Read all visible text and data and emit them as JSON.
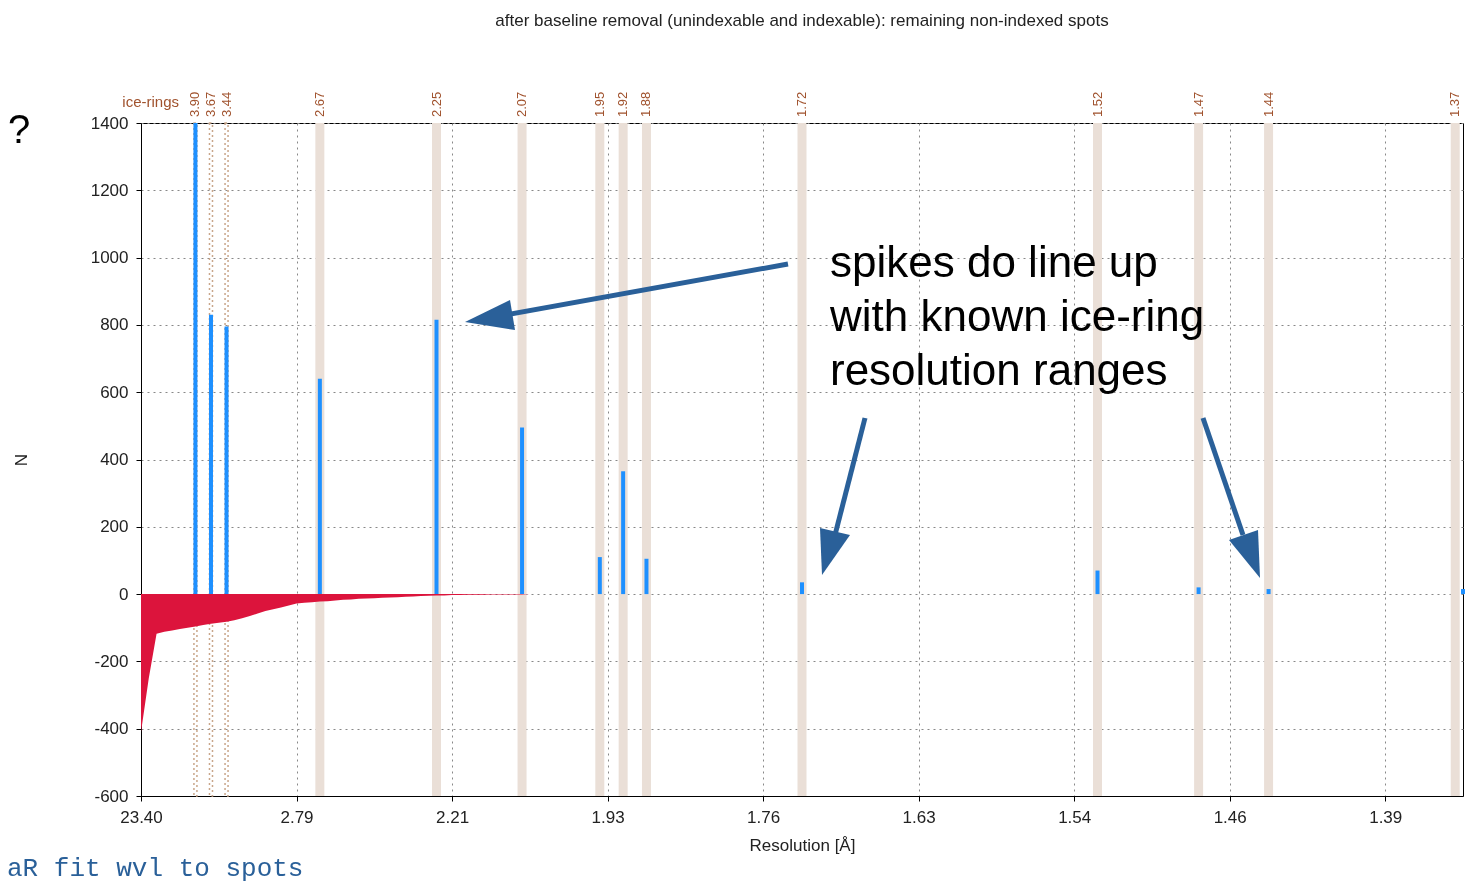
{
  "chart_data": {
    "type": "area",
    "title": "after baseline removal (unindexable and indexable): remaining non-indexed spots",
    "xlabel": "Resolution [Å]",
    "ylabel": "N",
    "categories": [
      "23.40",
      null,
      null,
      null,
      null,
      null,
      null,
      null,
      null,
      null,
      null,
      null,
      null,
      null,
      null,
      null,
      null,
      null,
      null,
      null,
      "2.79",
      null,
      null,
      null,
      null,
      null,
      null,
      null,
      null,
      null,
      null,
      null,
      null,
      null,
      null,
      null,
      null,
      null,
      null,
      null,
      "2.21",
      null,
      null,
      null,
      null,
      null,
      null,
      null,
      null,
      null,
      null,
      null,
      null,
      null,
      null,
      null,
      null,
      null,
      null,
      null,
      "1.93",
      null,
      null,
      null,
      null,
      null,
      null,
      null,
      null,
      null,
      null,
      null,
      null,
      null,
      null,
      null,
      null,
      null,
      null,
      null,
      "1.76",
      null,
      null,
      null,
      null,
      null,
      null,
      null,
      null,
      null,
      null,
      null,
      null,
      null,
      null,
      null,
      null,
      null,
      null,
      null,
      "1.63",
      null,
      null,
      null,
      null,
      null,
      null,
      null,
      null,
      null,
      null,
      null,
      null,
      null,
      null,
      null,
      null,
      null,
      null,
      null,
      "1.54",
      null,
      null,
      null,
      null,
      null,
      null,
      null,
      null,
      null,
      null,
      null,
      null,
      null,
      null,
      null,
      null,
      null,
      null,
      null,
      "1.46",
      null,
      null,
      null,
      null,
      null,
      null,
      null,
      null,
      null,
      null,
      null,
      null,
      null,
      null,
      null,
      null,
      null,
      null,
      null,
      "1.39",
      null,
      null,
      null,
      null,
      null,
      null,
      null,
      null,
      null,
      null
    ],
    "ylim": [
      -600,
      1400
    ],
    "yticks": [
      -600,
      -400,
      -200,
      0,
      200,
      400,
      600,
      800,
      1000,
      1200,
      1400
    ],
    "grid": true,
    "series": [
      {
        "type": "bar",
        "color": "#c9a68a",
        "line_style": "dotted",
        "base": [
          null,
          null,
          null,
          null,
          null,
          null,
          null,
          -600,
          null,
          -600,
          null,
          -600,
          null,
          null,
          null,
          null,
          null,
          null,
          null,
          null,
          null,
          null,
          null,
          null,
          null,
          null,
          null,
          null,
          null,
          null,
          null,
          null,
          null,
          null,
          null,
          null,
          null,
          null,
          null,
          null,
          null,
          null,
          null,
          null,
          null,
          null,
          null,
          null,
          null,
          null,
          null,
          null,
          null,
          null,
          null,
          null,
          null,
          null,
          null,
          null,
          null,
          null,
          null,
          null,
          null,
          null,
          null,
          null,
          null,
          null,
          null,
          null,
          null,
          null,
          null,
          null,
          null,
          null,
          null,
          null,
          null,
          null,
          null,
          null,
          null,
          null,
          null,
          null,
          null,
          null,
          null,
          null,
          null,
          null,
          null,
          null,
          null,
          null,
          null,
          null,
          null,
          null,
          null,
          null,
          null,
          null,
          null,
          null,
          null,
          null,
          null,
          null,
          null,
          null,
          null,
          null,
          null,
          null,
          null,
          null,
          null,
          null,
          null,
          null,
          null,
          null,
          null,
          null,
          null,
          null,
          null,
          null,
          null,
          null,
          null,
          null,
          null,
          null,
          null,
          null,
          null,
          null,
          null,
          null,
          null,
          null,
          null,
          null,
          null,
          null,
          null,
          null,
          null,
          null,
          null,
          null,
          null,
          null,
          null,
          null,
          null,
          null,
          null,
          null,
          null,
          null,
          null,
          null,
          null,
          null,
          null
        ],
        "values": [
          null,
          null,
          null,
          null,
          null,
          null,
          null,
          2000,
          null,
          2000,
          null,
          2000,
          null,
          null,
          null,
          null,
          null,
          null,
          null,
          null,
          null,
          null,
          null,
          null,
          null,
          null,
          null,
          null,
          null,
          null,
          null,
          null,
          null,
          null,
          null,
          null,
          null,
          null,
          null,
          null,
          null,
          null,
          null,
          null,
          null,
          null,
          null,
          null,
          null,
          null,
          null,
          null,
          null,
          null,
          null,
          null,
          null,
          null,
          null,
          null,
          null,
          null,
          null,
          null,
          null,
          null,
          null,
          null,
          null,
          null,
          null,
          null,
          null,
          null,
          null,
          null,
          null,
          null,
          null,
          null,
          null,
          null,
          null,
          null,
          null,
          null,
          null,
          null,
          null,
          null,
          null,
          null,
          null,
          null,
          null,
          null,
          null,
          null,
          null,
          null,
          null,
          null,
          null,
          null,
          null,
          null,
          null,
          null,
          null,
          null,
          null,
          null,
          null,
          null,
          null,
          null,
          null,
          null,
          null,
          null,
          null,
          null,
          null,
          null,
          null,
          null,
          null,
          null,
          null,
          null,
          null,
          null,
          null,
          null,
          null,
          null,
          null,
          null,
          null,
          null,
          null,
          null,
          null,
          null,
          null,
          null,
          null,
          null,
          null,
          null,
          null,
          null,
          null,
          null,
          null,
          null,
          null,
          null,
          null,
          null,
          null,
          null,
          null,
          null,
          null,
          null,
          null,
          null,
          null,
          null,
          null
        ]
      },
      {
        "type": "bar",
        "color": "#eadfd7",
        "base": [
          null,
          null,
          null,
          null,
          null,
          null,
          null,
          null,
          null,
          null,
          null,
          null,
          null,
          null,
          null,
          null,
          null,
          null,
          null,
          null,
          null,
          null,
          null,
          -600,
          null,
          null,
          null,
          null,
          null,
          null,
          null,
          null,
          null,
          null,
          null,
          null,
          null,
          null,
          -600,
          null,
          null,
          null,
          null,
          null,
          null,
          null,
          null,
          null,
          null,
          -600,
          null,
          null,
          null,
          null,
          null,
          null,
          null,
          null,
          null,
          -600,
          null,
          null,
          -600,
          null,
          null,
          -600,
          null,
          null,
          null,
          null,
          null,
          null,
          null,
          null,
          null,
          null,
          null,
          null,
          null,
          null,
          null,
          null,
          null,
          null,
          null,
          -600,
          null,
          null,
          null,
          null,
          null,
          null,
          null,
          null,
          null,
          null,
          null,
          null,
          null,
          null,
          null,
          null,
          null,
          null,
          null,
          null,
          null,
          null,
          null,
          null,
          null,
          null,
          null,
          null,
          null,
          null,
          null,
          null,
          null,
          null,
          null,
          null,
          null,
          -600,
          null,
          null,
          null,
          null,
          null,
          null,
          null,
          null,
          null,
          null,
          null,
          null,
          -600,
          null,
          null,
          null,
          null,
          null,
          null,
          null,
          null,
          -600,
          null,
          null,
          null,
          null,
          null,
          null,
          null,
          null,
          null,
          null,
          null,
          null,
          null,
          null,
          null,
          null,
          null,
          null,
          null,
          null,
          null,
          null,
          null,
          -600,
          null
        ],
        "values": [
          null,
          null,
          null,
          null,
          null,
          null,
          null,
          null,
          null,
          null,
          null,
          null,
          null,
          null,
          null,
          null,
          null,
          null,
          null,
          null,
          null,
          null,
          null,
          2000,
          null,
          null,
          null,
          null,
          null,
          null,
          null,
          null,
          null,
          null,
          null,
          null,
          null,
          null,
          2000,
          null,
          null,
          null,
          null,
          null,
          null,
          null,
          null,
          null,
          null,
          2000,
          null,
          null,
          null,
          null,
          null,
          null,
          null,
          null,
          null,
          2000,
          null,
          null,
          2000,
          null,
          null,
          2000,
          null,
          null,
          null,
          null,
          null,
          null,
          null,
          null,
          null,
          null,
          null,
          null,
          null,
          null,
          null,
          null,
          null,
          null,
          null,
          2000,
          null,
          null,
          null,
          null,
          null,
          null,
          null,
          null,
          null,
          null,
          null,
          null,
          null,
          null,
          null,
          null,
          null,
          null,
          null,
          null,
          null,
          null,
          null,
          null,
          null,
          null,
          null,
          null,
          null,
          null,
          null,
          null,
          null,
          null,
          null,
          null,
          null,
          2000,
          null,
          null,
          null,
          null,
          null,
          null,
          null,
          null,
          null,
          null,
          null,
          null,
          2000,
          null,
          null,
          null,
          null,
          null,
          null,
          null,
          null,
          2000,
          null,
          null,
          null,
          null,
          null,
          null,
          null,
          null,
          null,
          null,
          null,
          null,
          null,
          null,
          null,
          null,
          null,
          null,
          null,
          null,
          null,
          null,
          null,
          2000,
          null
        ]
      },
      {
        "type": "bar",
        "color": "#1e90ff",
        "values": [
          null,
          null,
          null,
          null,
          null,
          null,
          null,
          1400,
          null,
          830,
          null,
          795,
          null,
          null,
          null,
          null,
          null,
          null,
          null,
          null,
          null,
          null,
          null,
          640,
          null,
          null,
          null,
          null,
          null,
          null,
          null,
          null,
          null,
          null,
          null,
          null,
          null,
          null,
          815,
          null,
          null,
          null,
          null,
          null,
          null,
          null,
          null,
          null,
          null,
          495,
          null,
          null,
          null,
          null,
          null,
          null,
          null,
          null,
          null,
          110,
          null,
          null,
          365,
          null,
          null,
          105,
          null,
          null,
          null,
          null,
          null,
          null,
          null,
          null,
          null,
          null,
          null,
          null,
          null,
          null,
          null,
          null,
          null,
          null,
          null,
          35,
          null,
          null,
          null,
          null,
          null,
          null,
          null,
          null,
          null,
          null,
          null,
          null,
          null,
          null,
          null,
          null,
          null,
          null,
          null,
          null,
          null,
          null,
          null,
          null,
          null,
          null,
          null,
          null,
          null,
          null,
          null,
          null,
          null,
          null,
          null,
          null,
          null,
          70,
          null,
          null,
          null,
          null,
          null,
          null,
          null,
          null,
          null,
          null,
          null,
          null,
          20,
          null,
          null,
          null,
          null,
          null,
          null,
          null,
          null,
          15,
          null,
          null,
          null,
          null,
          null,
          null,
          null,
          null,
          null,
          null,
          null,
          null,
          null,
          null,
          null,
          null,
          null,
          null,
          null,
          null,
          null,
          null,
          null,
          null,
          15
        ]
      },
      {
        "color": "#dc143c",
        "values": [
          -410,
          -250,
          -118,
          -112,
          -108,
          -104,
          -100,
          -96,
          -92,
          -88,
          -85,
          -82,
          -78,
          -72,
          -65,
          -58,
          -50,
          -45,
          -40,
          -34,
          -28,
          -26,
          -24,
          -22,
          -21,
          -19,
          -17,
          -16,
          -14,
          -13,
          -12,
          -11,
          -10,
          -9,
          -8,
          -7,
          -6,
          -5,
          -4,
          -4,
          -3,
          -3,
          -2,
          -2,
          -2,
          -1,
          -1,
          -1,
          -1,
          -1,
          0,
          0,
          0,
          0,
          0,
          0,
          0,
          0,
          0,
          0,
          0,
          0,
          0,
          0,
          0,
          0,
          0,
          0,
          0,
          0,
          0,
          0,
          0,
          0,
          0,
          0,
          0,
          0,
          0,
          0,
          0,
          0,
          0,
          0,
          0,
          0,
          0,
          0,
          0,
          0,
          0,
          0,
          0,
          0,
          0,
          0,
          0,
          0,
          0,
          0,
          0,
          0,
          0,
          0,
          0,
          0,
          0,
          0,
          0,
          0,
          0,
          0,
          0,
          0,
          0,
          0,
          0,
          0,
          0,
          0,
          0,
          0,
          0,
          0,
          0,
          0,
          0,
          0,
          0,
          0,
          0,
          0,
          0,
          0,
          0,
          0,
          0,
          0,
          0,
          0,
          0,
          0,
          0,
          0,
          0,
          0,
          0,
          0,
          0,
          0,
          0,
          0,
          0,
          0,
          0,
          0,
          0,
          0,
          0,
          0,
          0,
          0,
          0,
          0,
          0,
          0,
          0,
          0,
          0,
          0,
          0
        ]
      }
    ],
    "annotations": [
      "ice-rings",
      "spikes do line up\nwith known ice-ring\nresolution ranges",
      "?",
      "aR fit wvl to spots",
      "3.90",
      "3.67",
      "3.44",
      "2.67",
      "2.25",
      "2.07",
      "1.95",
      "1.92",
      "1.88",
      "1.72",
      "1.52",
      "1.47",
      "1.44",
      "1.37"
    ]
  }
}
